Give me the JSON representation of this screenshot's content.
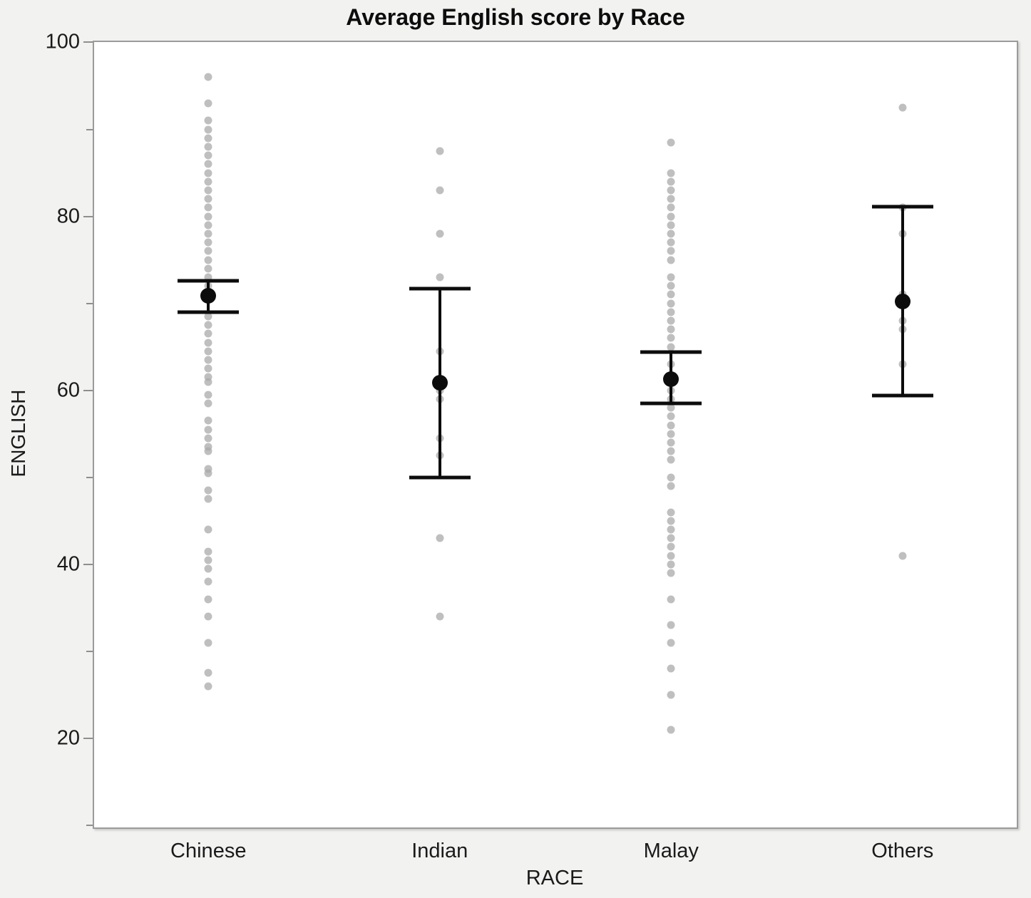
{
  "title": "Average English score by Race",
  "colors": {
    "background": "#f2f2f1",
    "plot_background": "#ffffff",
    "frame": "#9b9b9b",
    "jitter_dot": "#aaaaaa",
    "jitter_dot_opacity": 0.75,
    "mean_and_error": "#0c0c0c",
    "text": "#1a1a1a"
  },
  "chart_data": {
    "type": "scatter",
    "title": "Average English score by Race",
    "xlabel": "RACE",
    "ylabel": "ENGLISH",
    "ylim": [
      9.6,
      100.2
    ],
    "y_major_ticks": [
      20,
      40,
      60,
      80,
      100
    ],
    "y_minor_ticks": [
      10,
      30,
      50,
      70,
      90
    ],
    "grid": false,
    "legend": "none",
    "categories": [
      "Chinese",
      "Indian",
      "Malay",
      "Others"
    ],
    "description": "Individual English scores shown as gray jittered dots per race; black dot is group mean with error bars (mean ± interval).",
    "series": [
      {
        "name": "Chinese",
        "mean": 70.9,
        "error_low": 69.0,
        "error_high": 72.6,
        "points": [
          96,
          93,
          91,
          90,
          89,
          88,
          87,
          86,
          85,
          84,
          83,
          82,
          81,
          80,
          79,
          78,
          77,
          76,
          75,
          74,
          73,
          72,
          71,
          68.5,
          67.5,
          66.5,
          65.5,
          64.5,
          63.5,
          62.5,
          61.5,
          61,
          59.5,
          58.5,
          56.5,
          55.5,
          54.5,
          53.5,
          53,
          51,
          50.5,
          48.5,
          47.5,
          44,
          41.5,
          40.5,
          39.5,
          38,
          36,
          34,
          31,
          27.5,
          26
        ]
      },
      {
        "name": "Indian",
        "mean": 60.9,
        "error_low": 50.0,
        "error_high": 71.7,
        "points": [
          87.5,
          83,
          78,
          73,
          64.5,
          61,
          60,
          59,
          54.5,
          52.5,
          43,
          34
        ]
      },
      {
        "name": "Malay",
        "mean": 61.3,
        "error_low": 58.5,
        "error_high": 64.4,
        "points": [
          88.5,
          85,
          84,
          83,
          82,
          81,
          80,
          79,
          78,
          77,
          76,
          75,
          73,
          72,
          71,
          70,
          69,
          68,
          67,
          66,
          65,
          63,
          61.5,
          60,
          59,
          58,
          57,
          56,
          55,
          54,
          53,
          52,
          50,
          49,
          46,
          45,
          44,
          43,
          42,
          41,
          40,
          39,
          36,
          33,
          31,
          28,
          25,
          21
        ]
      },
      {
        "name": "Others",
        "mean": 70.2,
        "error_low": 59.4,
        "error_high": 81.1,
        "points": [
          92.5,
          81,
          78,
          71,
          68,
          67,
          63,
          41
        ]
      }
    ]
  }
}
